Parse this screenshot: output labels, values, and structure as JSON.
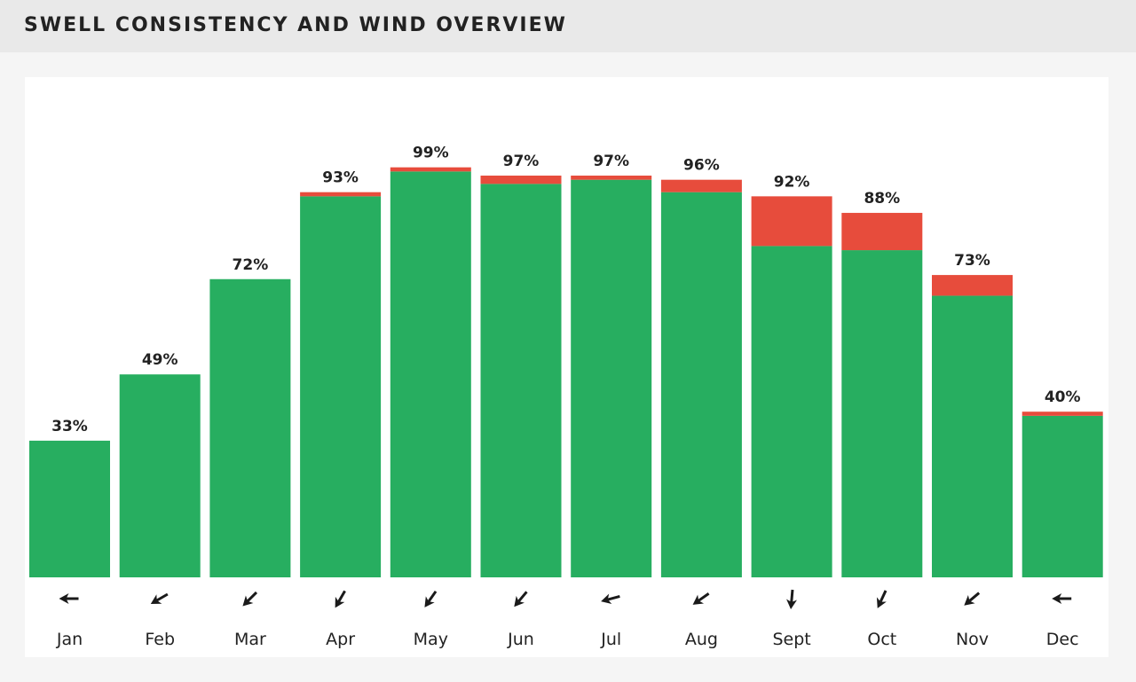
{
  "header": {
    "title": "SWELL CONSISTENCY AND WIND OVERVIEW"
  },
  "colors": {
    "green": "#27ae60",
    "red": "#e74c3c",
    "text": "#222222",
    "arrow": "#1a1a1a"
  },
  "chart_data": {
    "type": "bar",
    "stacked": true,
    "title": "SWELL CONSISTENCY AND WIND OVERVIEW",
    "categories": [
      "Jan",
      "Feb",
      "Mar",
      "Apr",
      "May",
      "Jun",
      "Jul",
      "Aug",
      "Sept",
      "Oct",
      "Nov",
      "Dec"
    ],
    "ylim": [
      0,
      100
    ],
    "grid": false,
    "legend": "none",
    "series": [
      {
        "color": "#27ae60",
        "values": [
          33,
          49,
          72,
          92,
          98,
          95,
          96,
          93,
          80,
          79,
          68,
          39
        ]
      },
      {
        "color": "#e74c3c",
        "values": [
          0,
          0,
          0,
          1,
          1,
          2,
          1,
          3,
          12,
          9,
          5,
          1
        ]
      }
    ],
    "data_labels": [
      "33%",
      "49%",
      "72%",
      "93%",
      "99%",
      "97%",
      "97%",
      "96%",
      "92%",
      "88%",
      "73%",
      "40%"
    ],
    "wind_direction_icons": [
      "arrow-left-icon",
      "arrow-up-left-icon",
      "arrow-up-left-icon",
      "arrow-up-left-icon",
      "arrow-up-left-icon",
      "arrow-up-left-icon",
      "arrow-left-icon",
      "arrow-up-left-icon",
      "arrow-up-icon",
      "arrow-up-left-icon",
      "arrow-up-left-icon",
      "arrow-left-icon"
    ],
    "wind_direction_angles": [
      180,
      150,
      135,
      120,
      125,
      130,
      165,
      145,
      95,
      115,
      140,
      180
    ]
  }
}
